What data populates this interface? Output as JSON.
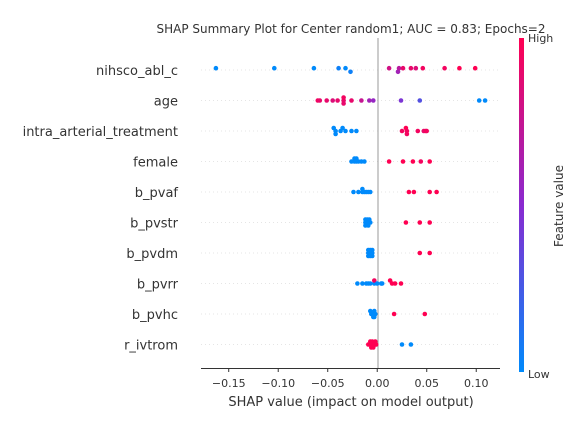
{
  "chart_data": {
    "type": "scatter",
    "title": "SHAP Summary Plot for Center random1; AUC = 0.83; Epochs=2",
    "xlabel": "SHAP value (impact on model output)",
    "xlim": [
      -0.178,
      0.124
    ],
    "xticks": [
      -0.15,
      -0.1,
      -0.05,
      0.0,
      0.05,
      0.1
    ],
    "xtick_labels": [
      "−0.15",
      "−0.10",
      "−0.05",
      "0.00",
      "0.05",
      "0.10"
    ],
    "features": [
      "nihsco_abl_c",
      "age",
      "intra_arterial_treatment",
      "female",
      "b_pvaf",
      "b_pvstr",
      "b_pvdm",
      "b_pvrr",
      "b_pvhc",
      "r_ivtrom"
    ],
    "colorbar": {
      "label": "Feature value",
      "high": "High",
      "low": "Low"
    },
    "colors": {
      "low": "#008afb",
      "mid": "#8a2ad0",
      "high": "#ff0052"
    },
    "points": [
      {
        "feature": "nihsco_abl_c",
        "values": [
          [
            -0.163,
            -0.6,
            0
          ],
          [
            -0.104,
            -0.6,
            0
          ],
          [
            -0.064,
            -0.6,
            0
          ],
          [
            -0.039,
            -0.6,
            0.05
          ],
          [
            -0.032,
            -0.6,
            0
          ],
          [
            -0.027,
            0.6,
            0.05
          ],
          [
            0.012,
            -0.6,
            0.8
          ],
          [
            0.021,
            0.6,
            0.6
          ],
          [
            0.022,
            -0.6,
            0.7
          ],
          [
            0.026,
            -0.6,
            0.9
          ],
          [
            0.034,
            -0.6,
            0.9
          ],
          [
            0.039,
            -0.6,
            0.85
          ],
          [
            0.046,
            -0.6,
            0.95
          ],
          [
            0.068,
            -0.6,
            0.95
          ],
          [
            0.083,
            -0.6,
            1
          ],
          [
            0.099,
            -0.6,
            1
          ]
        ]
      },
      {
        "feature": "age",
        "values": [
          [
            -0.06,
            0,
            0.95
          ],
          [
            -0.058,
            0,
            0.9
          ],
          [
            -0.051,
            0,
            0.9
          ],
          [
            -0.045,
            0,
            0.85
          ],
          [
            -0.04,
            0,
            0.9
          ],
          [
            -0.034,
            0,
            0.9
          ],
          [
            -0.034,
            -1,
            0.95
          ],
          [
            -0.034,
            1,
            0.9
          ],
          [
            -0.026,
            0,
            0.9
          ],
          [
            -0.016,
            0,
            0.75
          ],
          [
            -0.008,
            0,
            0.6
          ],
          [
            -0.004,
            0,
            0.55
          ],
          [
            0.024,
            0,
            0.45
          ],
          [
            0.043,
            0,
            0.3
          ],
          [
            0.103,
            0,
            0
          ],
          [
            0.109,
            0,
            0
          ]
        ]
      },
      {
        "feature": "intra_arterial_treatment",
        "values": [
          [
            -0.044,
            -1,
            0
          ],
          [
            -0.042,
            0,
            0
          ],
          [
            -0.042,
            1,
            0
          ],
          [
            -0.037,
            0,
            0
          ],
          [
            -0.035,
            -1,
            0
          ],
          [
            -0.032,
            0,
            0
          ],
          [
            -0.026,
            0,
            0
          ],
          [
            -0.021,
            0,
            0
          ],
          [
            0.025,
            0,
            0.95
          ],
          [
            0.029,
            -1,
            1
          ],
          [
            0.03,
            0,
            0.95
          ],
          [
            0.03,
            1,
            0.95
          ],
          [
            0.041,
            0,
            0.95
          ],
          [
            0.047,
            0,
            0.9
          ],
          [
            0.049,
            0,
            0.95
          ],
          [
            0.05,
            0,
            0.95
          ]
        ]
      },
      {
        "feature": "female",
        "values": [
          [
            -0.026,
            0,
            0
          ],
          [
            -0.023,
            -1,
            0
          ],
          [
            -0.023,
            0,
            0
          ],
          [
            -0.021,
            -1,
            0
          ],
          [
            -0.021,
            0,
            0
          ],
          [
            -0.019,
            0,
            0
          ],
          [
            -0.016,
            0,
            0
          ],
          [
            -0.013,
            0,
            0
          ],
          [
            0.012,
            0,
            1
          ],
          [
            0.026,
            0,
            1
          ],
          [
            0.036,
            0,
            1
          ],
          [
            0.044,
            0,
            0.95
          ],
          [
            0.053,
            0,
            1
          ]
        ]
      },
      {
        "feature": "b_pvaf",
        "values": [
          [
            -0.024,
            0,
            0
          ],
          [
            -0.019,
            0,
            0
          ],
          [
            -0.015,
            -1,
            0
          ],
          [
            -0.015,
            0,
            0
          ],
          [
            -0.013,
            0,
            0
          ],
          [
            -0.011,
            0,
            0
          ],
          [
            -0.009,
            0,
            0
          ],
          [
            -0.007,
            0,
            0
          ],
          [
            0.032,
            0,
            1
          ],
          [
            0.037,
            0,
            1
          ],
          [
            0.053,
            0,
            1
          ],
          [
            0.06,
            0,
            1
          ]
        ]
      },
      {
        "feature": "b_pvstr",
        "values": [
          [
            -0.012,
            0,
            0
          ],
          [
            -0.012,
            -1,
            0
          ],
          [
            -0.012,
            1,
            0
          ],
          [
            -0.01,
            0,
            0
          ],
          [
            -0.01,
            -1,
            0
          ],
          [
            -0.009,
            1,
            0
          ],
          [
            -0.008,
            -1,
            0
          ],
          [
            -0.008,
            0,
            0
          ],
          [
            -0.007,
            0,
            0
          ],
          [
            0.029,
            0,
            1
          ],
          [
            0.043,
            0,
            1
          ],
          [
            0.053,
            0,
            1
          ]
        ]
      },
      {
        "feature": "b_pvdm",
        "values": [
          [
            -0.009,
            0,
            0
          ],
          [
            -0.009,
            -1,
            0
          ],
          [
            -0.009,
            1,
            0
          ],
          [
            -0.007,
            -1,
            0
          ],
          [
            -0.007,
            0,
            0
          ],
          [
            -0.007,
            1,
            0
          ],
          [
            -0.006,
            0,
            0
          ],
          [
            -0.005,
            -1,
            0
          ],
          [
            -0.005,
            0,
            0
          ],
          [
            -0.005,
            1,
            0
          ],
          [
            0.043,
            0,
            1
          ],
          [
            0.053,
            0,
            1
          ]
        ]
      },
      {
        "feature": "b_pvrr",
        "values": [
          [
            -0.02,
            0,
            0
          ],
          [
            -0.015,
            0,
            0
          ],
          [
            -0.011,
            0,
            0
          ],
          [
            -0.009,
            0,
            0
          ],
          [
            -0.007,
            0,
            0
          ],
          [
            -0.003,
            0,
            0
          ],
          [
            -0.003,
            -1,
            0.95
          ],
          [
            0.0,
            0,
            0
          ],
          [
            0.004,
            0,
            0
          ],
          [
            0.005,
            0,
            0
          ],
          [
            0.013,
            -1,
            1
          ],
          [
            0.015,
            0,
            1
          ],
          [
            0.018,
            0,
            1
          ],
          [
            0.024,
            0,
            1
          ]
        ]
      },
      {
        "feature": "b_pvhc",
        "values": [
          [
            -0.007,
            -1,
            0
          ],
          [
            -0.006,
            0,
            0
          ],
          [
            -0.005,
            0,
            0
          ],
          [
            -0.004,
            1,
            0
          ],
          [
            -0.004,
            0,
            0
          ],
          [
            -0.003,
            -1,
            0
          ],
          [
            -0.003,
            1,
            0
          ],
          [
            -0.002,
            0,
            0
          ],
          [
            0.017,
            0,
            1
          ],
          [
            0.048,
            0,
            1
          ]
        ]
      },
      {
        "feature": "r_ivtrom",
        "values": [
          [
            -0.009,
            0,
            1
          ],
          [
            -0.007,
            -1,
            1
          ],
          [
            -0.007,
            0,
            1
          ],
          [
            -0.006,
            1,
            1
          ],
          [
            -0.005,
            0,
            1
          ],
          [
            -0.005,
            -1,
            1
          ],
          [
            -0.004,
            0,
            1
          ],
          [
            -0.004,
            1,
            1
          ],
          [
            -0.003,
            0,
            1
          ],
          [
            -0.002,
            -1,
            1
          ],
          [
            -0.002,
            0,
            1
          ],
          [
            -0.001,
            0,
            1
          ],
          [
            0.025,
            0,
            0
          ],
          [
            0.034,
            0,
            0
          ]
        ]
      }
    ]
  }
}
